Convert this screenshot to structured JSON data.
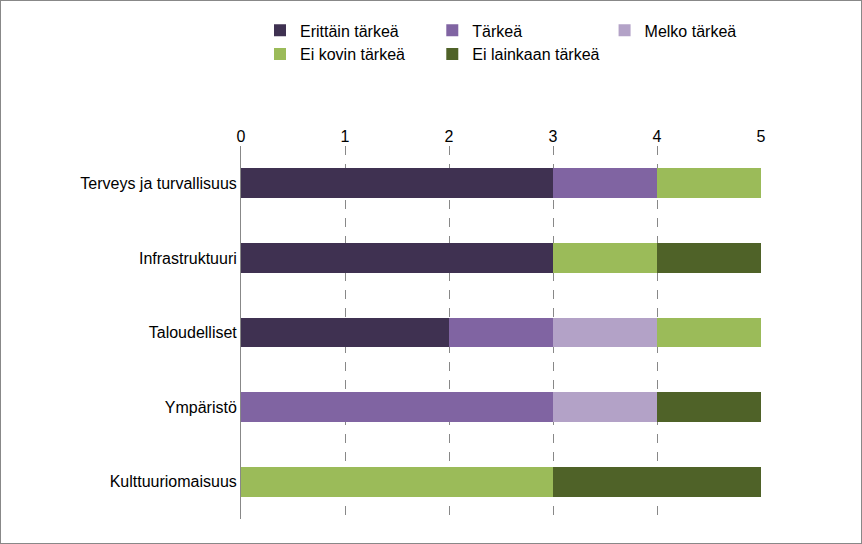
{
  "chart_data": {
    "type": "bar",
    "orientation": "horizontal",
    "stacked": true,
    "grid": true,
    "legend": "top",
    "data_labels": false,
    "categories": [
      "Terveys ja turvallisuus",
      "Infrastruktuuri",
      "Taloudelliset",
      "Ympäristö",
      "Kulttuuriomaisuus"
    ],
    "series": [
      {
        "name": "Erittäin tärkeä",
        "color": "#3f3151",
        "values": [
          3,
          3,
          2,
          0,
          0
        ]
      },
      {
        "name": "Tärkeä",
        "color": "#8064a2",
        "values": [
          1,
          0,
          1,
          3,
          0
        ]
      },
      {
        "name": "Melko tärkeä",
        "color": "#b3a2c7",
        "values": [
          0,
          0,
          1,
          1,
          0
        ]
      },
      {
        "name": "Ei kovin tärkeä",
        "color": "#9bbb59",
        "values": [
          1,
          1,
          1,
          0,
          3
        ]
      },
      {
        "name": "Ei lainkaan tärkeä",
        "color": "#4f6228",
        "values": [
          0,
          1,
          0,
          1,
          2
        ]
      }
    ],
    "xlim": [
      0,
      5
    ],
    "xticks": [
      0,
      1,
      2,
      3,
      4,
      5
    ]
  }
}
